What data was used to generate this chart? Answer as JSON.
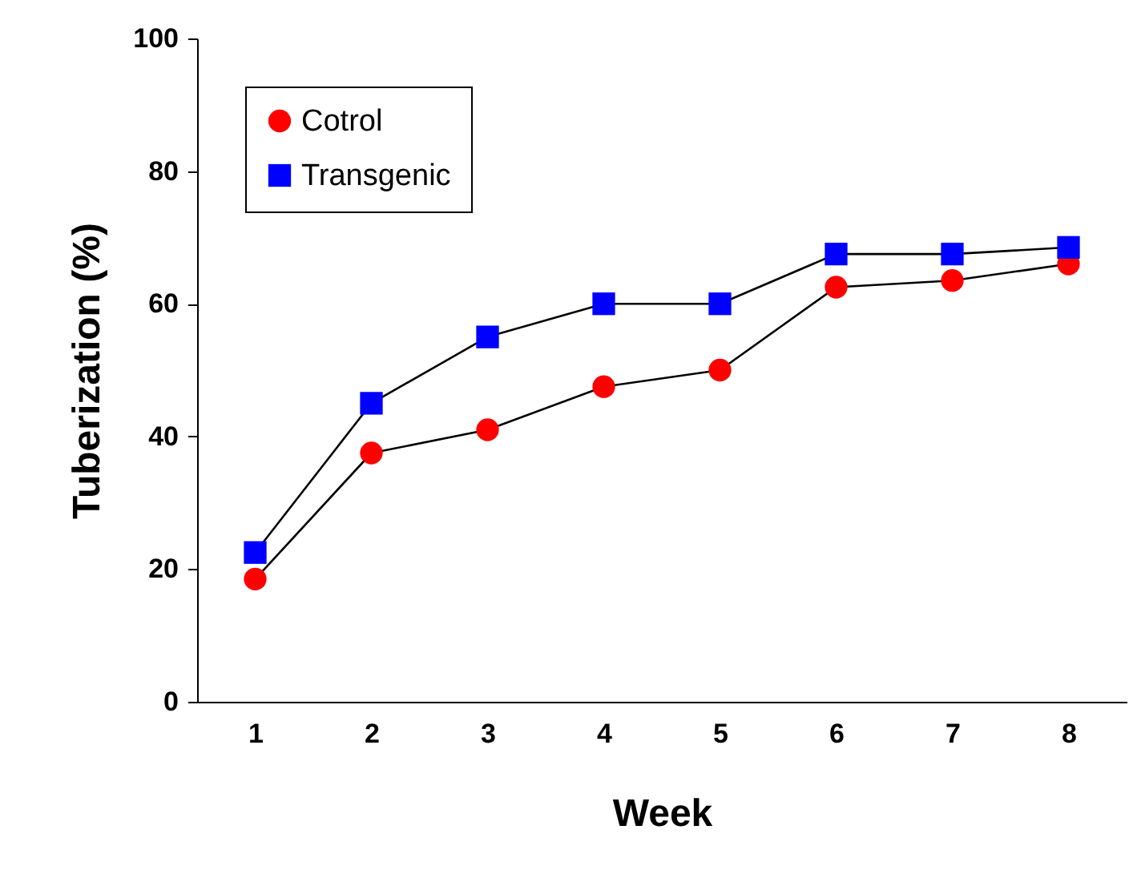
{
  "chart_data": {
    "type": "line",
    "xlabel": "Week",
    "ylabel": "Tuberization (%)",
    "categories": [
      "1",
      "2",
      "3",
      "4",
      "5",
      "6",
      "7",
      "8"
    ],
    "series": [
      {
        "name": "Cotrol",
        "color": "#ff0000",
        "marker": "circle",
        "values": [
          18.5,
          37.5,
          41,
          47.5,
          50,
          62.5,
          63.5,
          66
        ]
      },
      {
        "name": "Transgenic",
        "color": "#0000ff",
        "marker": "square",
        "values": [
          22.5,
          45,
          55,
          60,
          60,
          67.5,
          67.5,
          68.5
        ]
      }
    ],
    "ylim": [
      0,
      100
    ],
    "yticks": [
      0,
      20,
      40,
      60,
      80,
      100
    ],
    "grid": false,
    "legend": "top left"
  }
}
